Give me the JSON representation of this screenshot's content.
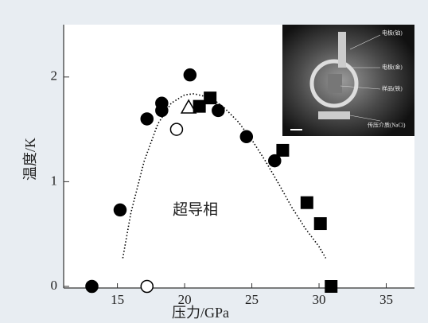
{
  "chart_data": {
    "type": "scatter",
    "x_label": "压力/GPa",
    "y_label": "温度/K",
    "xlim": [
      11,
      37.1
    ],
    "ylim": [
      0,
      2.5
    ],
    "xticks": [
      15,
      20,
      25,
      30,
      35
    ],
    "yticks": [
      0,
      1,
      2
    ],
    "annotation": {
      "text": "超导相",
      "x": 20.8,
      "y": 0.72
    },
    "series": [
      {
        "marker": "circle",
        "filled": true,
        "color": "#000000",
        "x": [
          13.1,
          15.2,
          17.2,
          18.3,
          18.3,
          20.4,
          22.5,
          24.6,
          26.7
        ],
        "values": [
          0,
          0.73,
          1.6,
          1.75,
          1.68,
          2.02,
          1.68,
          1.43,
          1.2
        ]
      },
      {
        "marker": "circle",
        "filled": false,
        "color": "#000000",
        "x": [
          17.2,
          19.4
        ],
        "values": [
          0,
          1.5
        ]
      },
      {
        "marker": "triangle",
        "filled": false,
        "color": "#000000",
        "x": [
          20.3
        ],
        "values": [
          1.71
        ]
      },
      {
        "marker": "square",
        "filled": true,
        "color": "#000000",
        "x": [
          21.1,
          21.9,
          27.3,
          29.1,
          30.1,
          30.9
        ],
        "values": [
          1.72,
          1.8,
          1.3,
          0.8,
          0.6,
          0
        ]
      },
      {
        "marker": "dotted-line",
        "color": "#000000",
        "x": [
          15.4,
          16,
          17,
          18,
          19,
          20,
          20.7,
          22,
          23,
          24,
          25,
          26,
          27,
          28,
          29,
          30,
          30.5
        ],
        "values": [
          0.27,
          0.7,
          1.2,
          1.55,
          1.75,
          1.83,
          1.84,
          1.8,
          1.7,
          1.57,
          1.4,
          1.2,
          0.98,
          0.75,
          0.55,
          0.38,
          0.27
        ]
      }
    ],
    "inset_labels": [
      "电极(铂)",
      "电极(金)",
      "样品(铁)",
      "传压介质(NaCl)"
    ]
  }
}
